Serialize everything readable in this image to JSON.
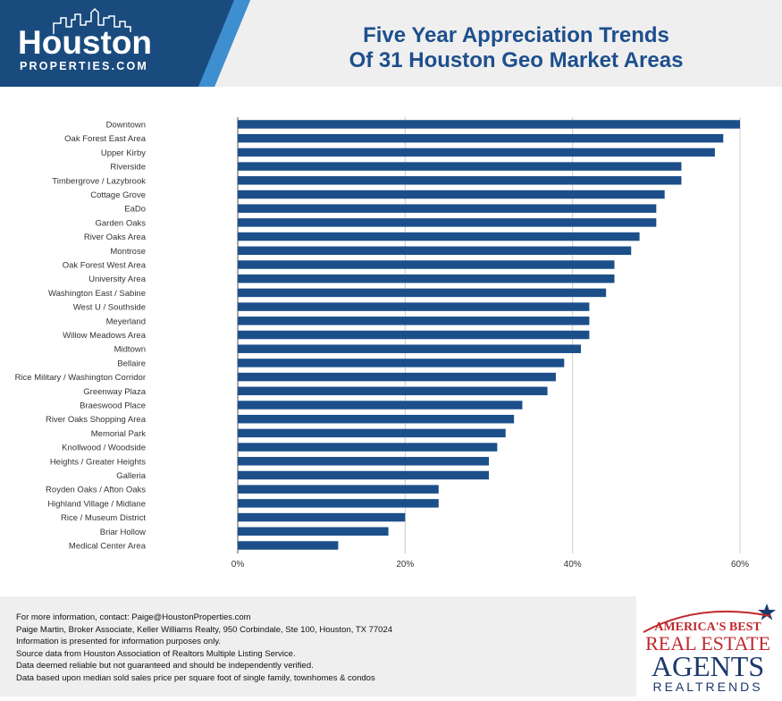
{
  "logo": {
    "word": "Houston",
    "sub": "PROPERTIES.COM",
    "color_blue": "#1a4b7e",
    "color_light": "#3d8fd0"
  },
  "title": {
    "line1": "Five Year Appreciation Trends",
    "line2": "Of 31 Houston Geo Market Areas"
  },
  "chart_data": {
    "type": "bar",
    "orientation": "horizontal",
    "bar_color": "#1c4f8a",
    "categories": [
      "Downtown",
      "Oak Forest East Area",
      "Upper Kirby",
      "Riverside",
      "Timbergrove / Lazybrook",
      "Cottage Grove",
      "EaDo",
      "Garden Oaks",
      "River Oaks Area",
      "Montrose",
      "Oak Forest West Area",
      "University Area",
      "Washington East / Sabine",
      "West U / Southside",
      "Meyerland",
      "Willow Meadows Area",
      "Midtown",
      "Bellaire",
      "Rice Military / Washington Corridor",
      "Greenway Plaza",
      "Braeswood Place",
      "River Oaks Shopping Area",
      "Memorial Park",
      "Knollwood / Woodside",
      "Heights / Greater Heights",
      "Galleria",
      "Royden Oaks / Afton Oaks",
      "Highland Village / Midlane",
      "Rice / Museum District",
      "Briar Hollow",
      "Medical Center Area"
    ],
    "values": [
      60,
      58,
      57,
      53,
      53,
      51,
      50,
      50,
      48,
      47,
      45,
      45,
      44,
      42,
      42,
      42,
      41,
      39,
      38,
      37,
      34,
      33,
      32,
      31,
      30,
      30,
      24,
      24,
      20,
      18,
      12
    ],
    "xlim": [
      0,
      60
    ],
    "ticks": [
      "0%",
      "20%",
      "40%",
      "60%"
    ],
    "tick_values": [
      0,
      20,
      40,
      60
    ],
    "grid": true
  },
  "footer": {
    "lines": [
      "For more information, contact: Paige@HoustonProperties.com",
      "Paige Martin, Broker Associate, Keller Williams Realty, 950 Corbindale, Ste 100, Houston, TX 77024",
      "Information is presented for information purposes only.",
      "Source data from Houston Association of Realtors Multiple Listing Service.",
      "Data deemed reliable but not guaranteed and should be independently verified.",
      "Data based upon median sold sales price per square foot of single family, townhomes & condos"
    ]
  },
  "badge": {
    "line1": "AMERICA'S BEST",
    "line2": "REAL ESTATE",
    "line3": "AGENTS",
    "line4": "REALTRENDS",
    "color_red": "#c0282d",
    "color_navy": "#1b3a6b"
  }
}
